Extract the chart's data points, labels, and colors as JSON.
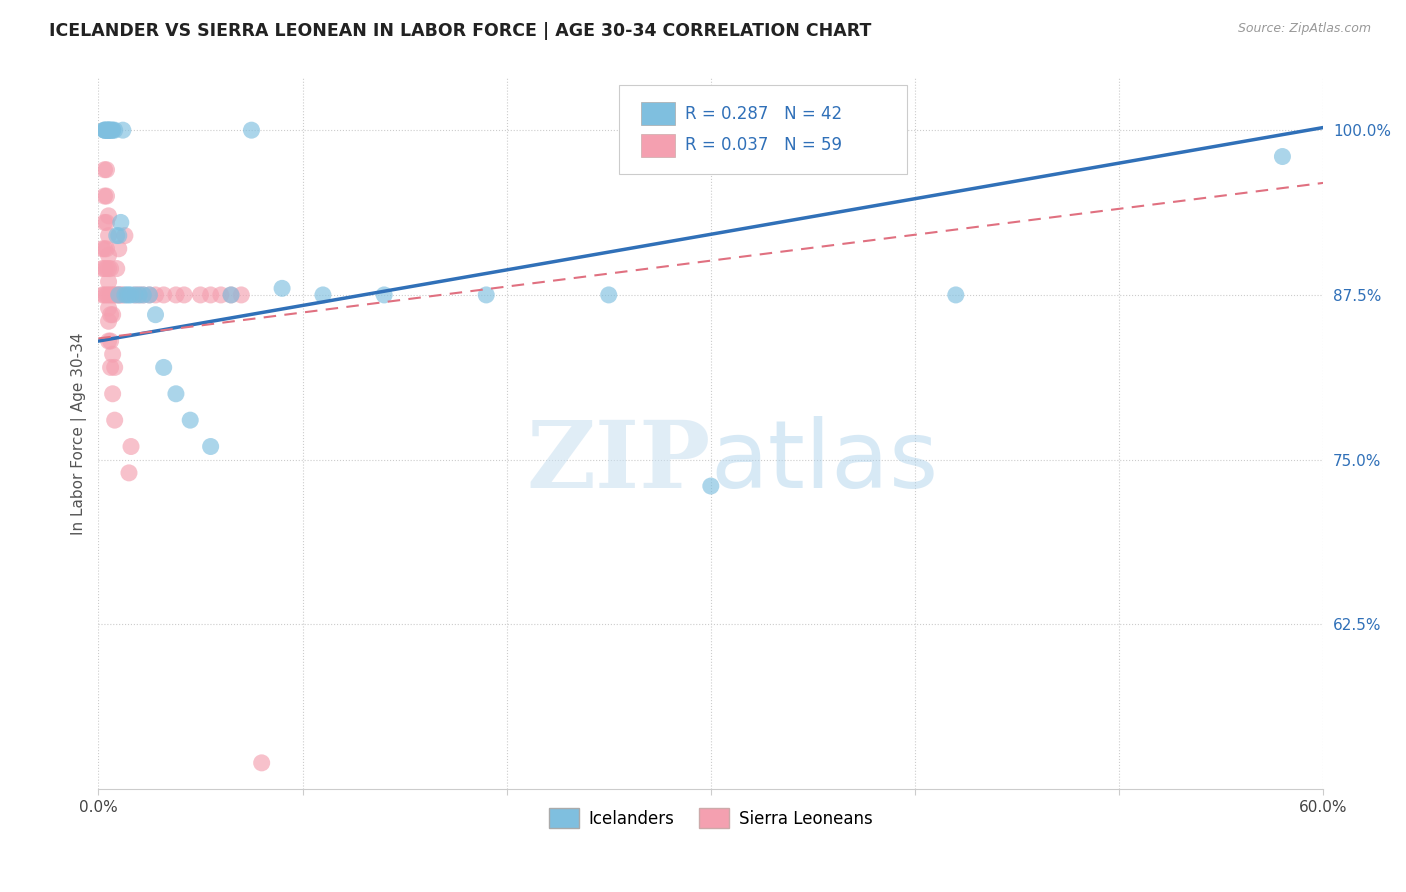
{
  "title": "ICELANDER VS SIERRA LEONEAN IN LABOR FORCE | AGE 30-34 CORRELATION CHART",
  "source": "Source: ZipAtlas.com",
  "ylabel": "In Labor Force | Age 30-34",
  "xlim": [
    0.0,
    0.6
  ],
  "ylim": [
    0.5,
    1.04
  ],
  "xticks": [
    0.0,
    0.1,
    0.2,
    0.3,
    0.4,
    0.5,
    0.6
  ],
  "xticklabels": [
    "0.0%",
    "",
    "",
    "",
    "",
    "",
    "60.0%"
  ],
  "ytick_positions": [
    0.625,
    0.75,
    0.875,
    1.0
  ],
  "ytick_labels": [
    "62.5%",
    "75.0%",
    "87.5%",
    "100.0%"
  ],
  "legend_r_blue": "R = 0.287",
  "legend_n_blue": "N = 42",
  "legend_r_pink": "R = 0.037",
  "legend_n_pink": "N = 59",
  "blue_color": "#7fbfdf",
  "pink_color": "#f4a0b0",
  "blue_line_color": "#3070b8",
  "pink_line_color": "#e07080",
  "watermark_zip": "ZIP",
  "watermark_atlas": "atlas",
  "blue_line_x": [
    0.0,
    0.6
  ],
  "blue_line_y": [
    0.84,
    1.002
  ],
  "pink_line_x": [
    0.0,
    0.6
  ],
  "pink_line_y": [
    0.842,
    0.96
  ],
  "icelander_x": [
    0.003,
    0.003,
    0.003,
    0.004,
    0.004,
    0.005,
    0.005,
    0.005,
    0.005,
    0.006,
    0.006,
    0.007,
    0.007,
    0.008,
    0.009,
    0.01,
    0.01,
    0.011,
    0.012,
    0.013,
    0.014,
    0.015,
    0.016,
    0.018,
    0.02,
    0.022,
    0.025,
    0.028,
    0.032,
    0.038,
    0.045,
    0.055,
    0.065,
    0.075,
    0.09,
    0.11,
    0.14,
    0.19,
    0.25,
    0.3,
    0.42,
    0.58
  ],
  "icelander_y": [
    1.0,
    1.0,
    1.0,
    1.0,
    1.0,
    1.0,
    1.0,
    1.0,
    1.0,
    1.0,
    1.0,
    1.0,
    1.0,
    1.0,
    0.92,
    0.875,
    0.92,
    0.93,
    1.0,
    0.875,
    0.875,
    0.875,
    0.875,
    0.875,
    0.875,
    0.875,
    0.875,
    0.86,
    0.82,
    0.8,
    0.78,
    0.76,
    0.875,
    1.0,
    0.88,
    0.875,
    0.875,
    0.875,
    0.875,
    0.73,
    0.875,
    0.98
  ],
  "sierra_x": [
    0.002,
    0.002,
    0.002,
    0.003,
    0.003,
    0.003,
    0.003,
    0.003,
    0.003,
    0.004,
    0.004,
    0.004,
    0.004,
    0.004,
    0.004,
    0.005,
    0.005,
    0.005,
    0.005,
    0.005,
    0.005,
    0.005,
    0.005,
    0.005,
    0.006,
    0.006,
    0.006,
    0.006,
    0.006,
    0.007,
    0.007,
    0.007,
    0.007,
    0.008,
    0.008,
    0.008,
    0.009,
    0.009,
    0.01,
    0.01,
    0.011,
    0.012,
    0.013,
    0.015,
    0.016,
    0.018,
    0.02,
    0.022,
    0.025,
    0.028,
    0.032,
    0.038,
    0.042,
    0.05,
    0.055,
    0.06,
    0.065,
    0.07,
    0.08
  ],
  "sierra_y": [
    0.875,
    0.895,
    0.91,
    0.875,
    0.895,
    0.91,
    0.93,
    0.95,
    0.97,
    0.875,
    0.895,
    0.91,
    0.93,
    0.95,
    0.97,
    0.84,
    0.855,
    0.865,
    0.875,
    0.885,
    0.895,
    0.905,
    0.92,
    0.935,
    0.82,
    0.84,
    0.86,
    0.875,
    0.895,
    0.8,
    0.83,
    0.86,
    0.875,
    0.78,
    0.82,
    0.875,
    0.875,
    0.895,
    0.875,
    0.91,
    0.875,
    0.875,
    0.92,
    0.74,
    0.76,
    0.875,
    0.875,
    0.875,
    0.875,
    0.875,
    0.875,
    0.875,
    0.875,
    0.875,
    0.875,
    0.875,
    0.875,
    0.875,
    0.52
  ]
}
